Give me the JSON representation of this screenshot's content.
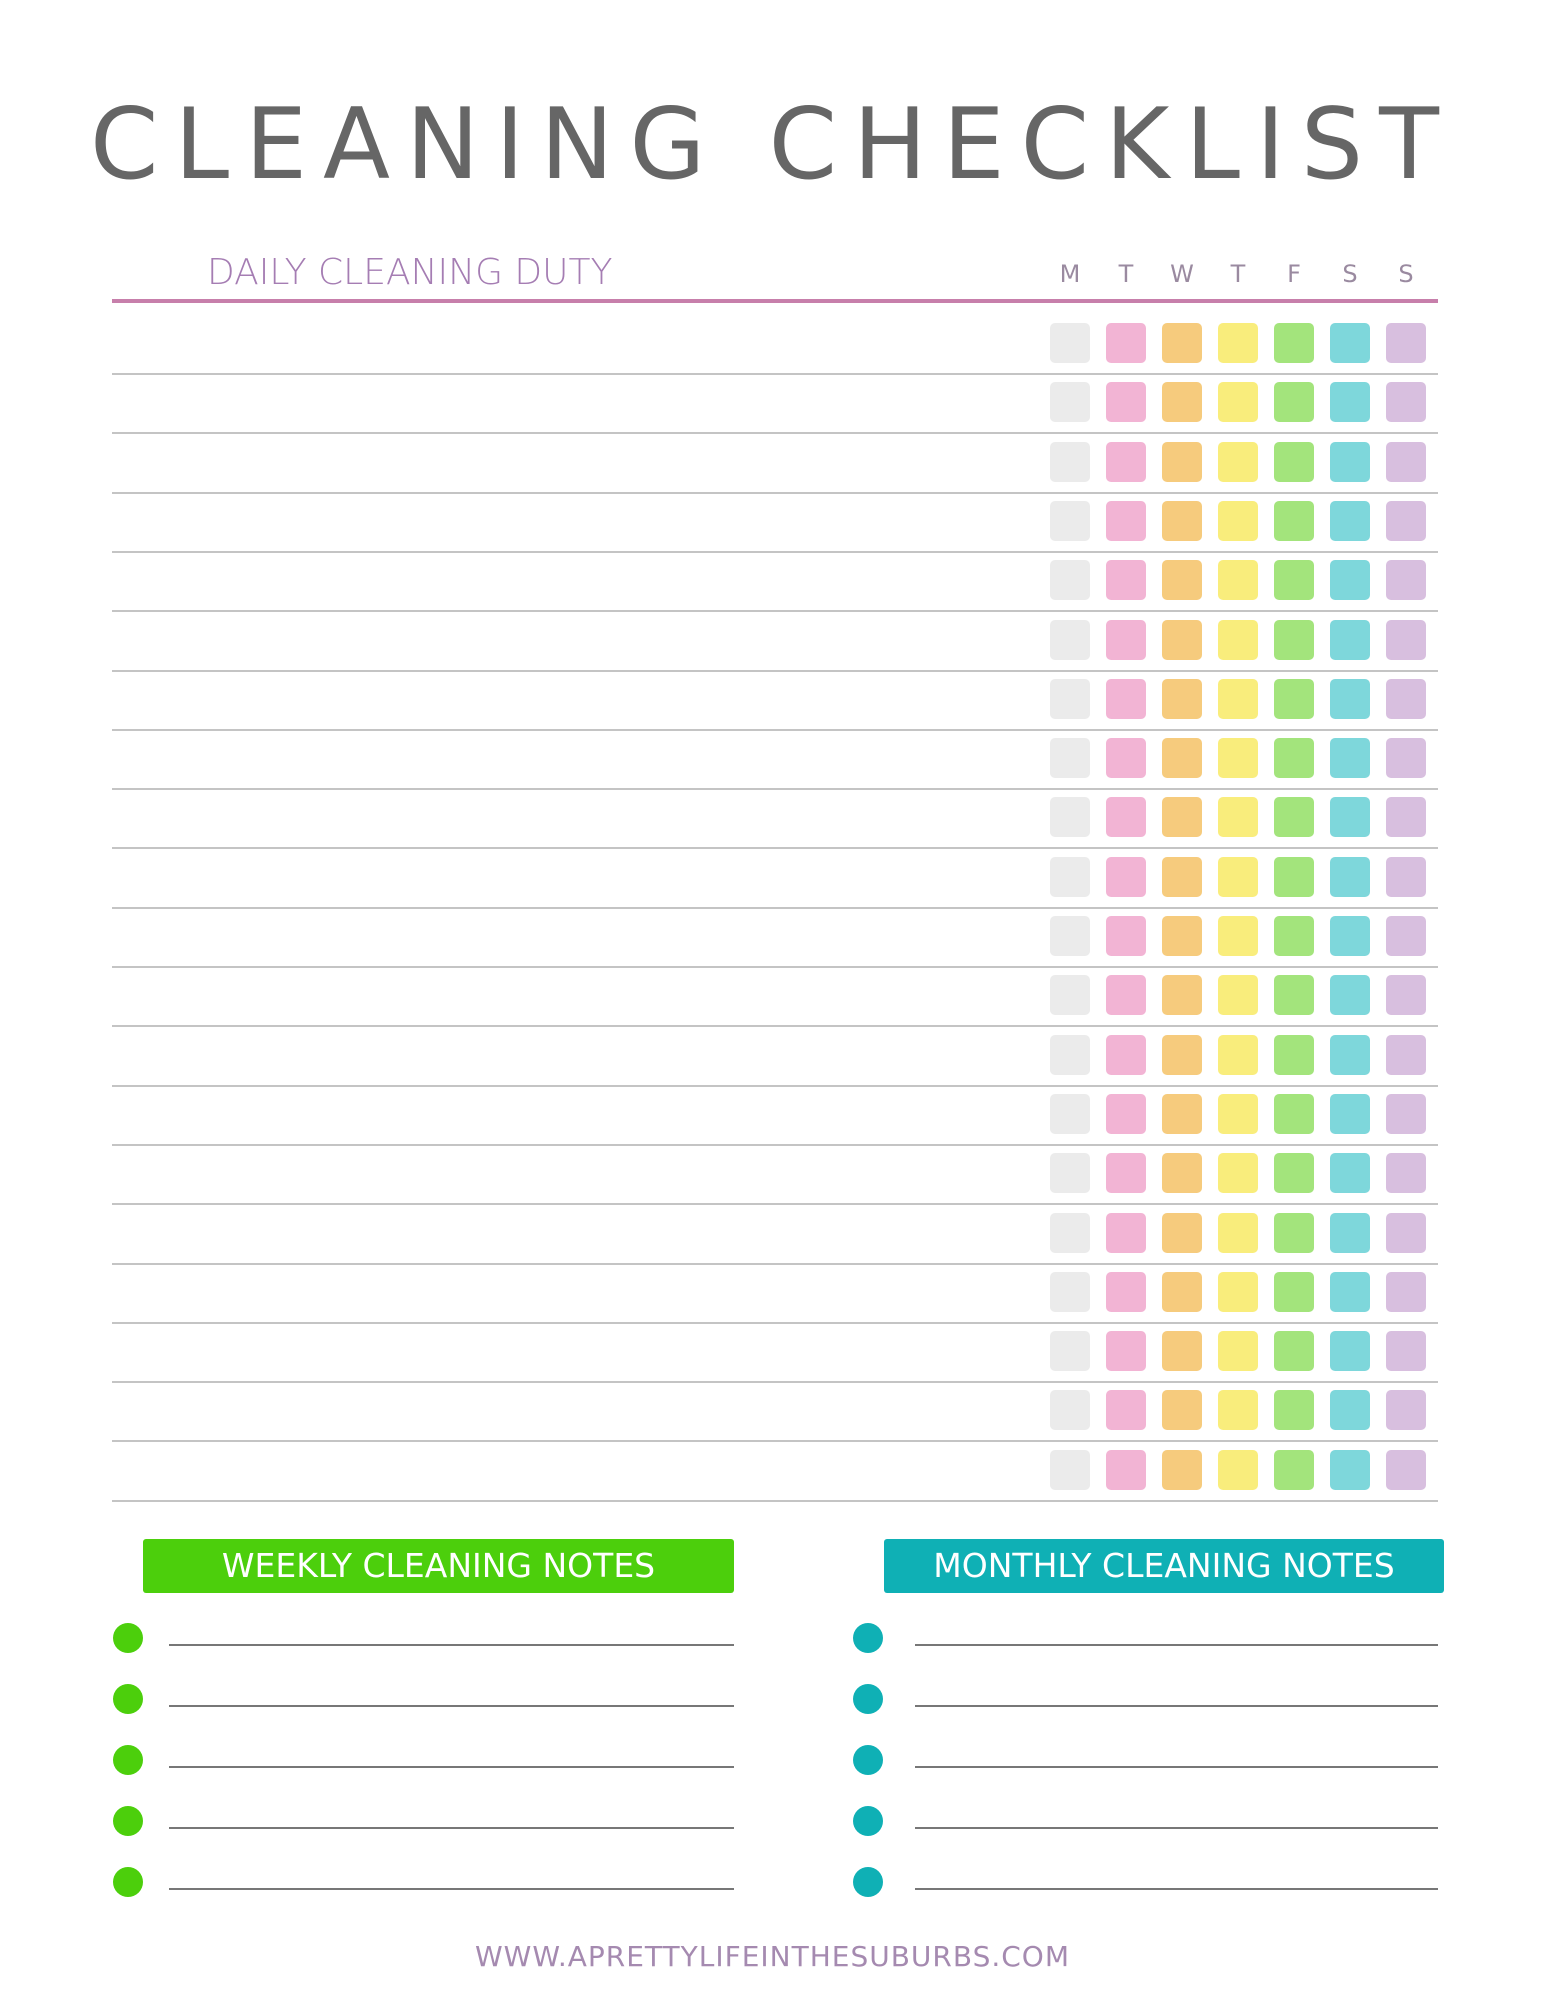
{
  "title": "CLEANING CHECKLIST",
  "daily": {
    "heading": "DAILY CLEANING DUTY",
    "days": [
      "M",
      "T",
      "W",
      "T",
      "F",
      "S",
      "S"
    ],
    "row_count": 20,
    "day_colors": [
      "#ebebeb",
      "#f2b4d4",
      "#f6cb7d",
      "#f9ed7c",
      "#a3e47c",
      "#7ed7db",
      "#d8bfdf"
    ]
  },
  "weekly": {
    "heading": "WEEKLY CLEANING NOTES",
    "color": "#4ccf0c",
    "lines": 5
  },
  "monthly": {
    "heading": "MONTHLY CLEANING NOTES",
    "color": "#0fb0b5",
    "lines": 5
  },
  "footer": "WWW.APRETTYLIFEINTHESUBURBS.COM"
}
